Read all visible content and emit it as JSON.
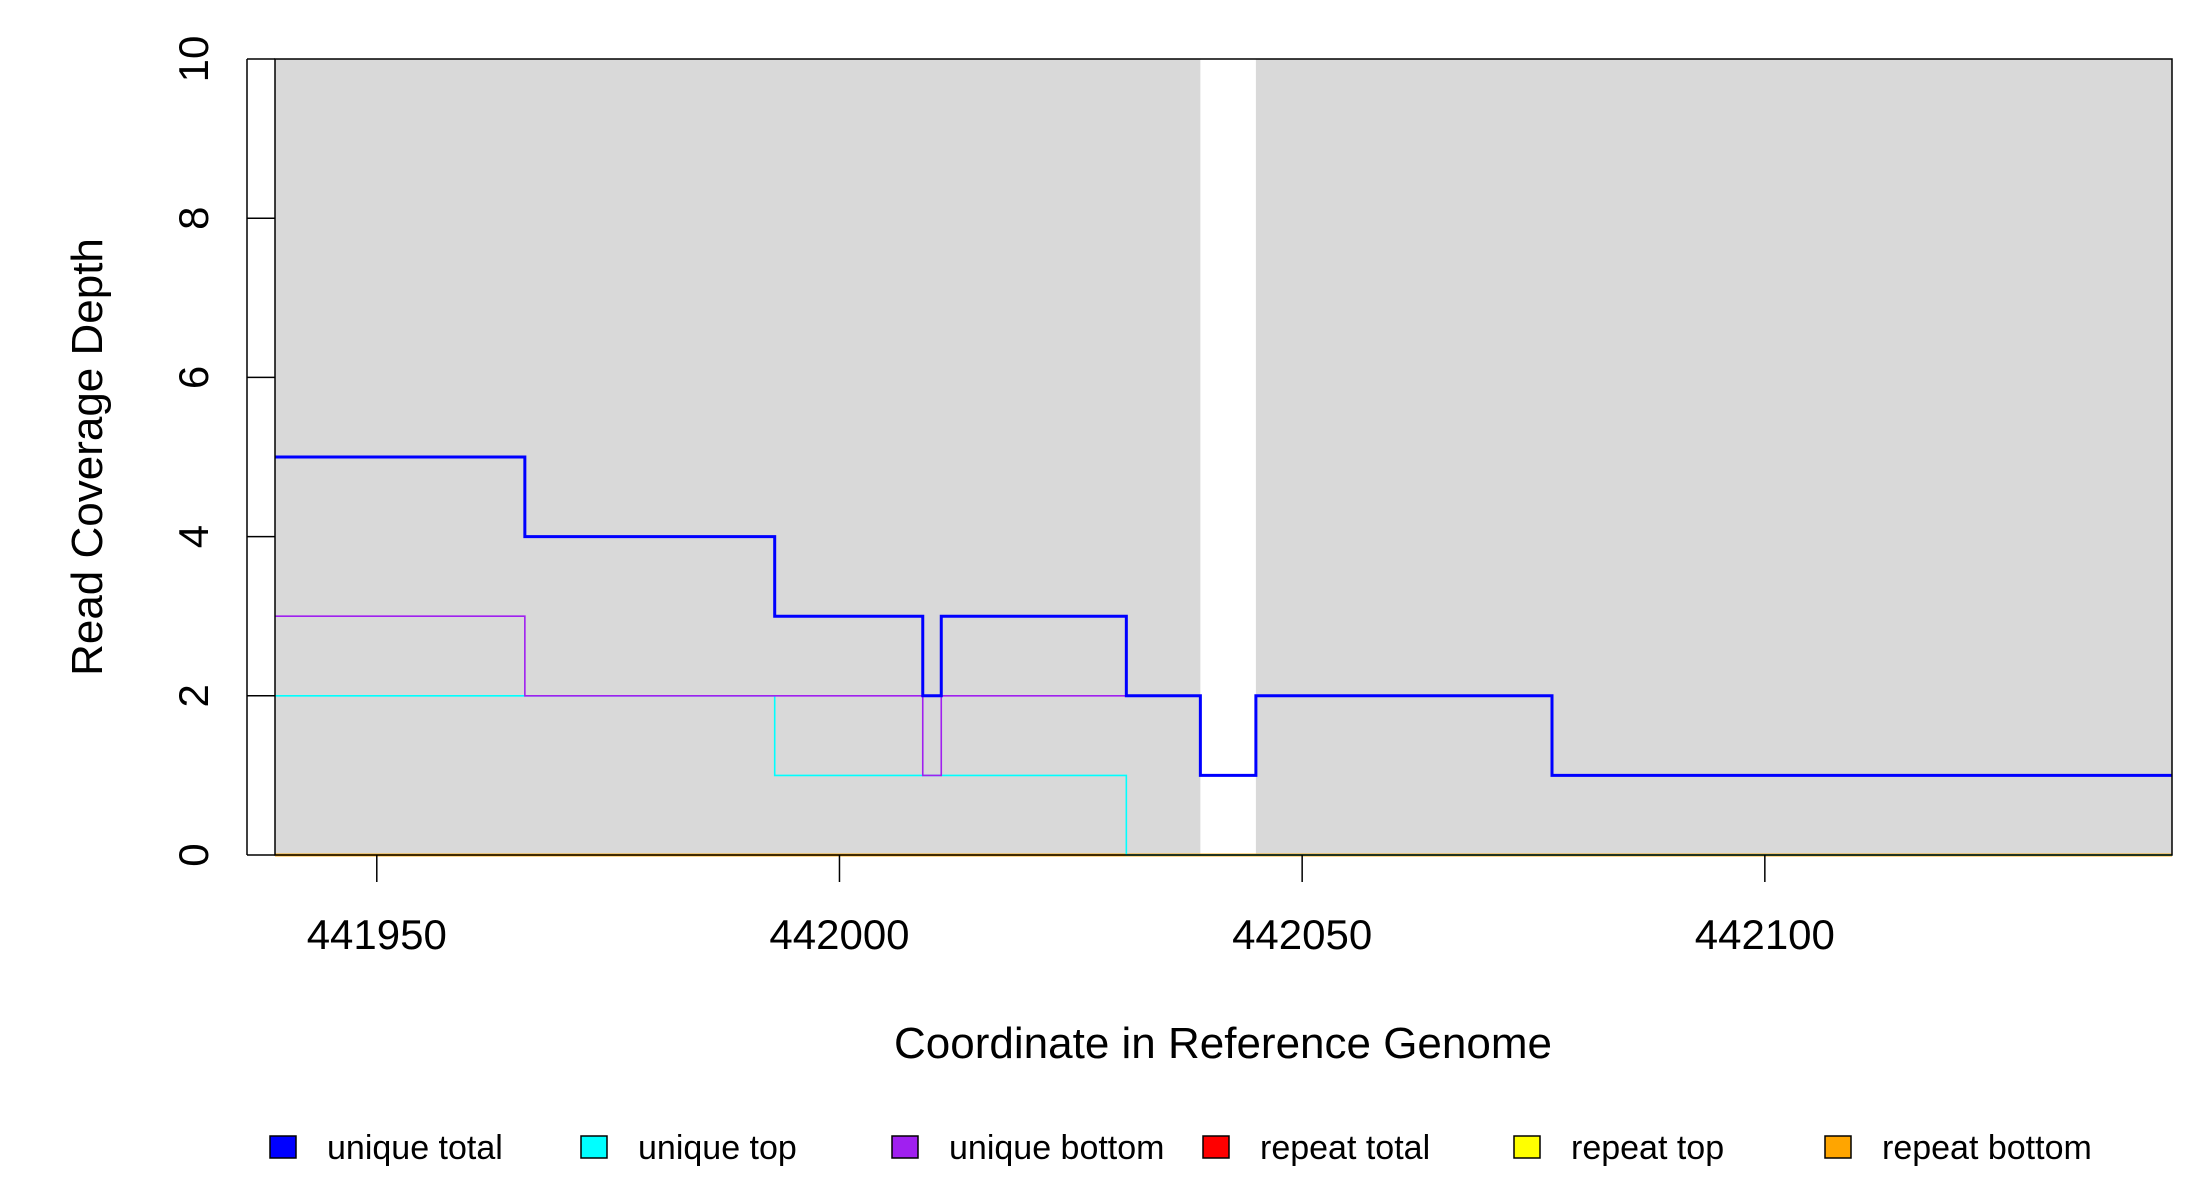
{
  "chart_data": {
    "type": "line",
    "xlabel": "Coordinate in Reference Genome",
    "ylabel": "Read Coverage Depth",
    "xlim": [
      441939,
      442144
    ],
    "ylim": [
      0,
      10
    ],
    "x_ticks": [
      441950,
      442000,
      442050,
      442100
    ],
    "x_tick_labels": [
      "441950",
      "442000",
      "442050",
      "442100"
    ],
    "y_ticks": [
      0,
      2,
      4,
      6,
      8,
      10
    ],
    "y_tick_labels": [
      "0",
      "2",
      "4",
      "6",
      "8",
      "10"
    ],
    "grid": false,
    "background_color": "#d9d9d9",
    "gap_regions": [
      [
        442039,
        442045
      ]
    ],
    "gap_color": "#ffffff",
    "legend_position": "bottom",
    "series": [
      {
        "name": "unique total",
        "color": "#0000ff",
        "steps": [
          [
            441939,
            5
          ],
          [
            441966,
            4
          ],
          [
            441993,
            3
          ],
          [
            442009,
            2
          ],
          [
            442011,
            3
          ],
          [
            442031,
            2
          ],
          [
            442039,
            1
          ],
          [
            442045,
            2
          ],
          [
            442077,
            1
          ],
          [
            442144,
            1
          ]
        ]
      },
      {
        "name": "unique top",
        "color": "#00ffff",
        "steps": [
          [
            441939,
            2
          ],
          [
            441993,
            1
          ],
          [
            442031,
            0
          ],
          [
            442144,
            0
          ]
        ]
      },
      {
        "name": "unique bottom",
        "color": "#a020f0",
        "steps": [
          [
            441939,
            3
          ],
          [
            441966,
            2
          ],
          [
            442009,
            1
          ],
          [
            442011,
            2
          ],
          [
            442039,
            1
          ],
          [
            442045,
            2
          ],
          [
            442077,
            1
          ],
          [
            442144,
            1
          ]
        ]
      },
      {
        "name": "repeat total",
        "color": "#ff0000",
        "steps": [
          [
            441939,
            0
          ],
          [
            442144,
            0
          ]
        ]
      },
      {
        "name": "repeat top",
        "color": "#ffff00",
        "steps": [
          [
            441939,
            0
          ],
          [
            442144,
            0
          ]
        ]
      },
      {
        "name": "repeat bottom",
        "color": "#ffa500",
        "steps": [
          [
            441939,
            0
          ],
          [
            442144,
            0
          ]
        ]
      }
    ]
  }
}
